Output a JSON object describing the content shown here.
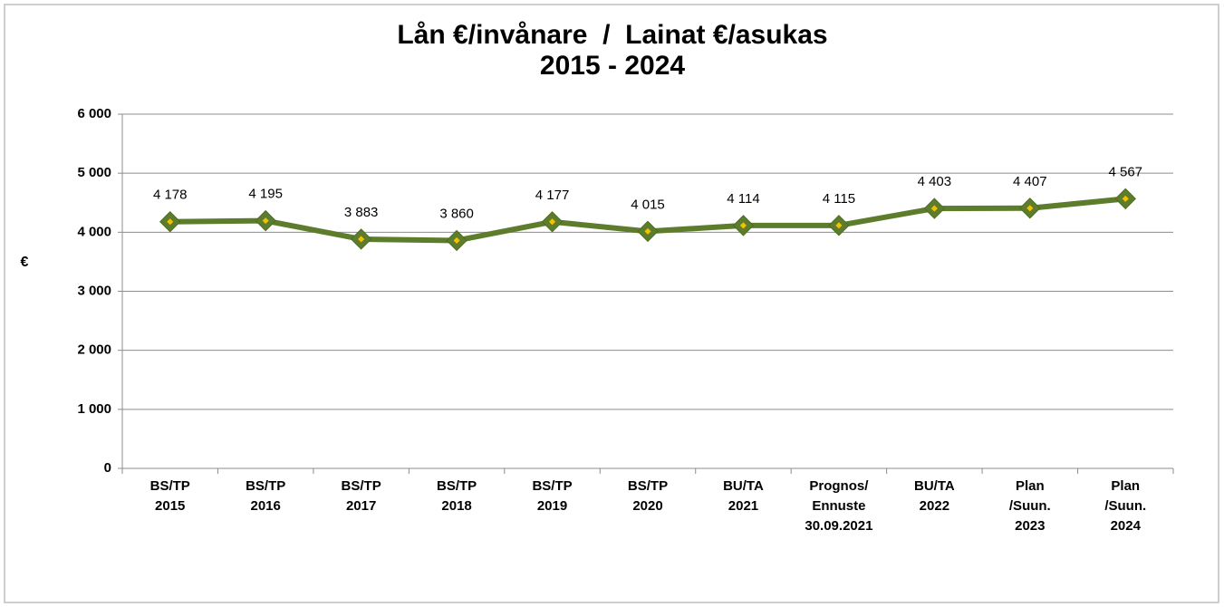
{
  "chart_data": {
    "type": "line",
    "title": "Lån €/invånare  /  Lainat €/asukas",
    "subtitle": "2015 - 2024",
    "y_label": "€",
    "categories": [
      [
        "BS/TP",
        "2015"
      ],
      [
        "BS/TP",
        "2016"
      ],
      [
        "BS/TP",
        "2017"
      ],
      [
        "BS/TP",
        "2018"
      ],
      [
        "BS/TP",
        "2019"
      ],
      [
        "BS/TP",
        "2020"
      ],
      [
        "BU/TA",
        "2021"
      ],
      [
        "Prognos/",
        "Ennuste",
        "30.09.2021"
      ],
      [
        "BU/TA",
        "2022"
      ],
      [
        "Plan",
        "/Suun.",
        "2023"
      ],
      [
        "Plan",
        "/Suun.",
        "2024"
      ]
    ],
    "series": [
      {
        "name": "Lån €/invånare",
        "color": "#5e7d2c",
        "marker_color": "#f2c200",
        "values": [
          4178,
          4195,
          3883,
          3860,
          4177,
          4015,
          4114,
          4115,
          4403,
          4407,
          4567
        ],
        "value_labels": [
          "4 178",
          "4 195",
          "3 883",
          "3 860",
          "4 177",
          "4 015",
          "4 114",
          "4 115",
          "4 403",
          "4 407",
          "4 567"
        ]
      }
    ],
    "ylim": [
      0,
      6000
    ],
    "yticks": [
      0,
      {
        "value": 1000,
        "label": "1 000"
      },
      {
        "value": 2000,
        "label": "2 000"
      },
      {
        "value": 3000,
        "label": "3 000"
      },
      {
        "value": 4000,
        "label": "4 000"
      },
      {
        "value": 5000,
        "label": "5 000"
      },
      {
        "value": 6000,
        "label": "6 000"
      }
    ],
    "grid": true
  }
}
